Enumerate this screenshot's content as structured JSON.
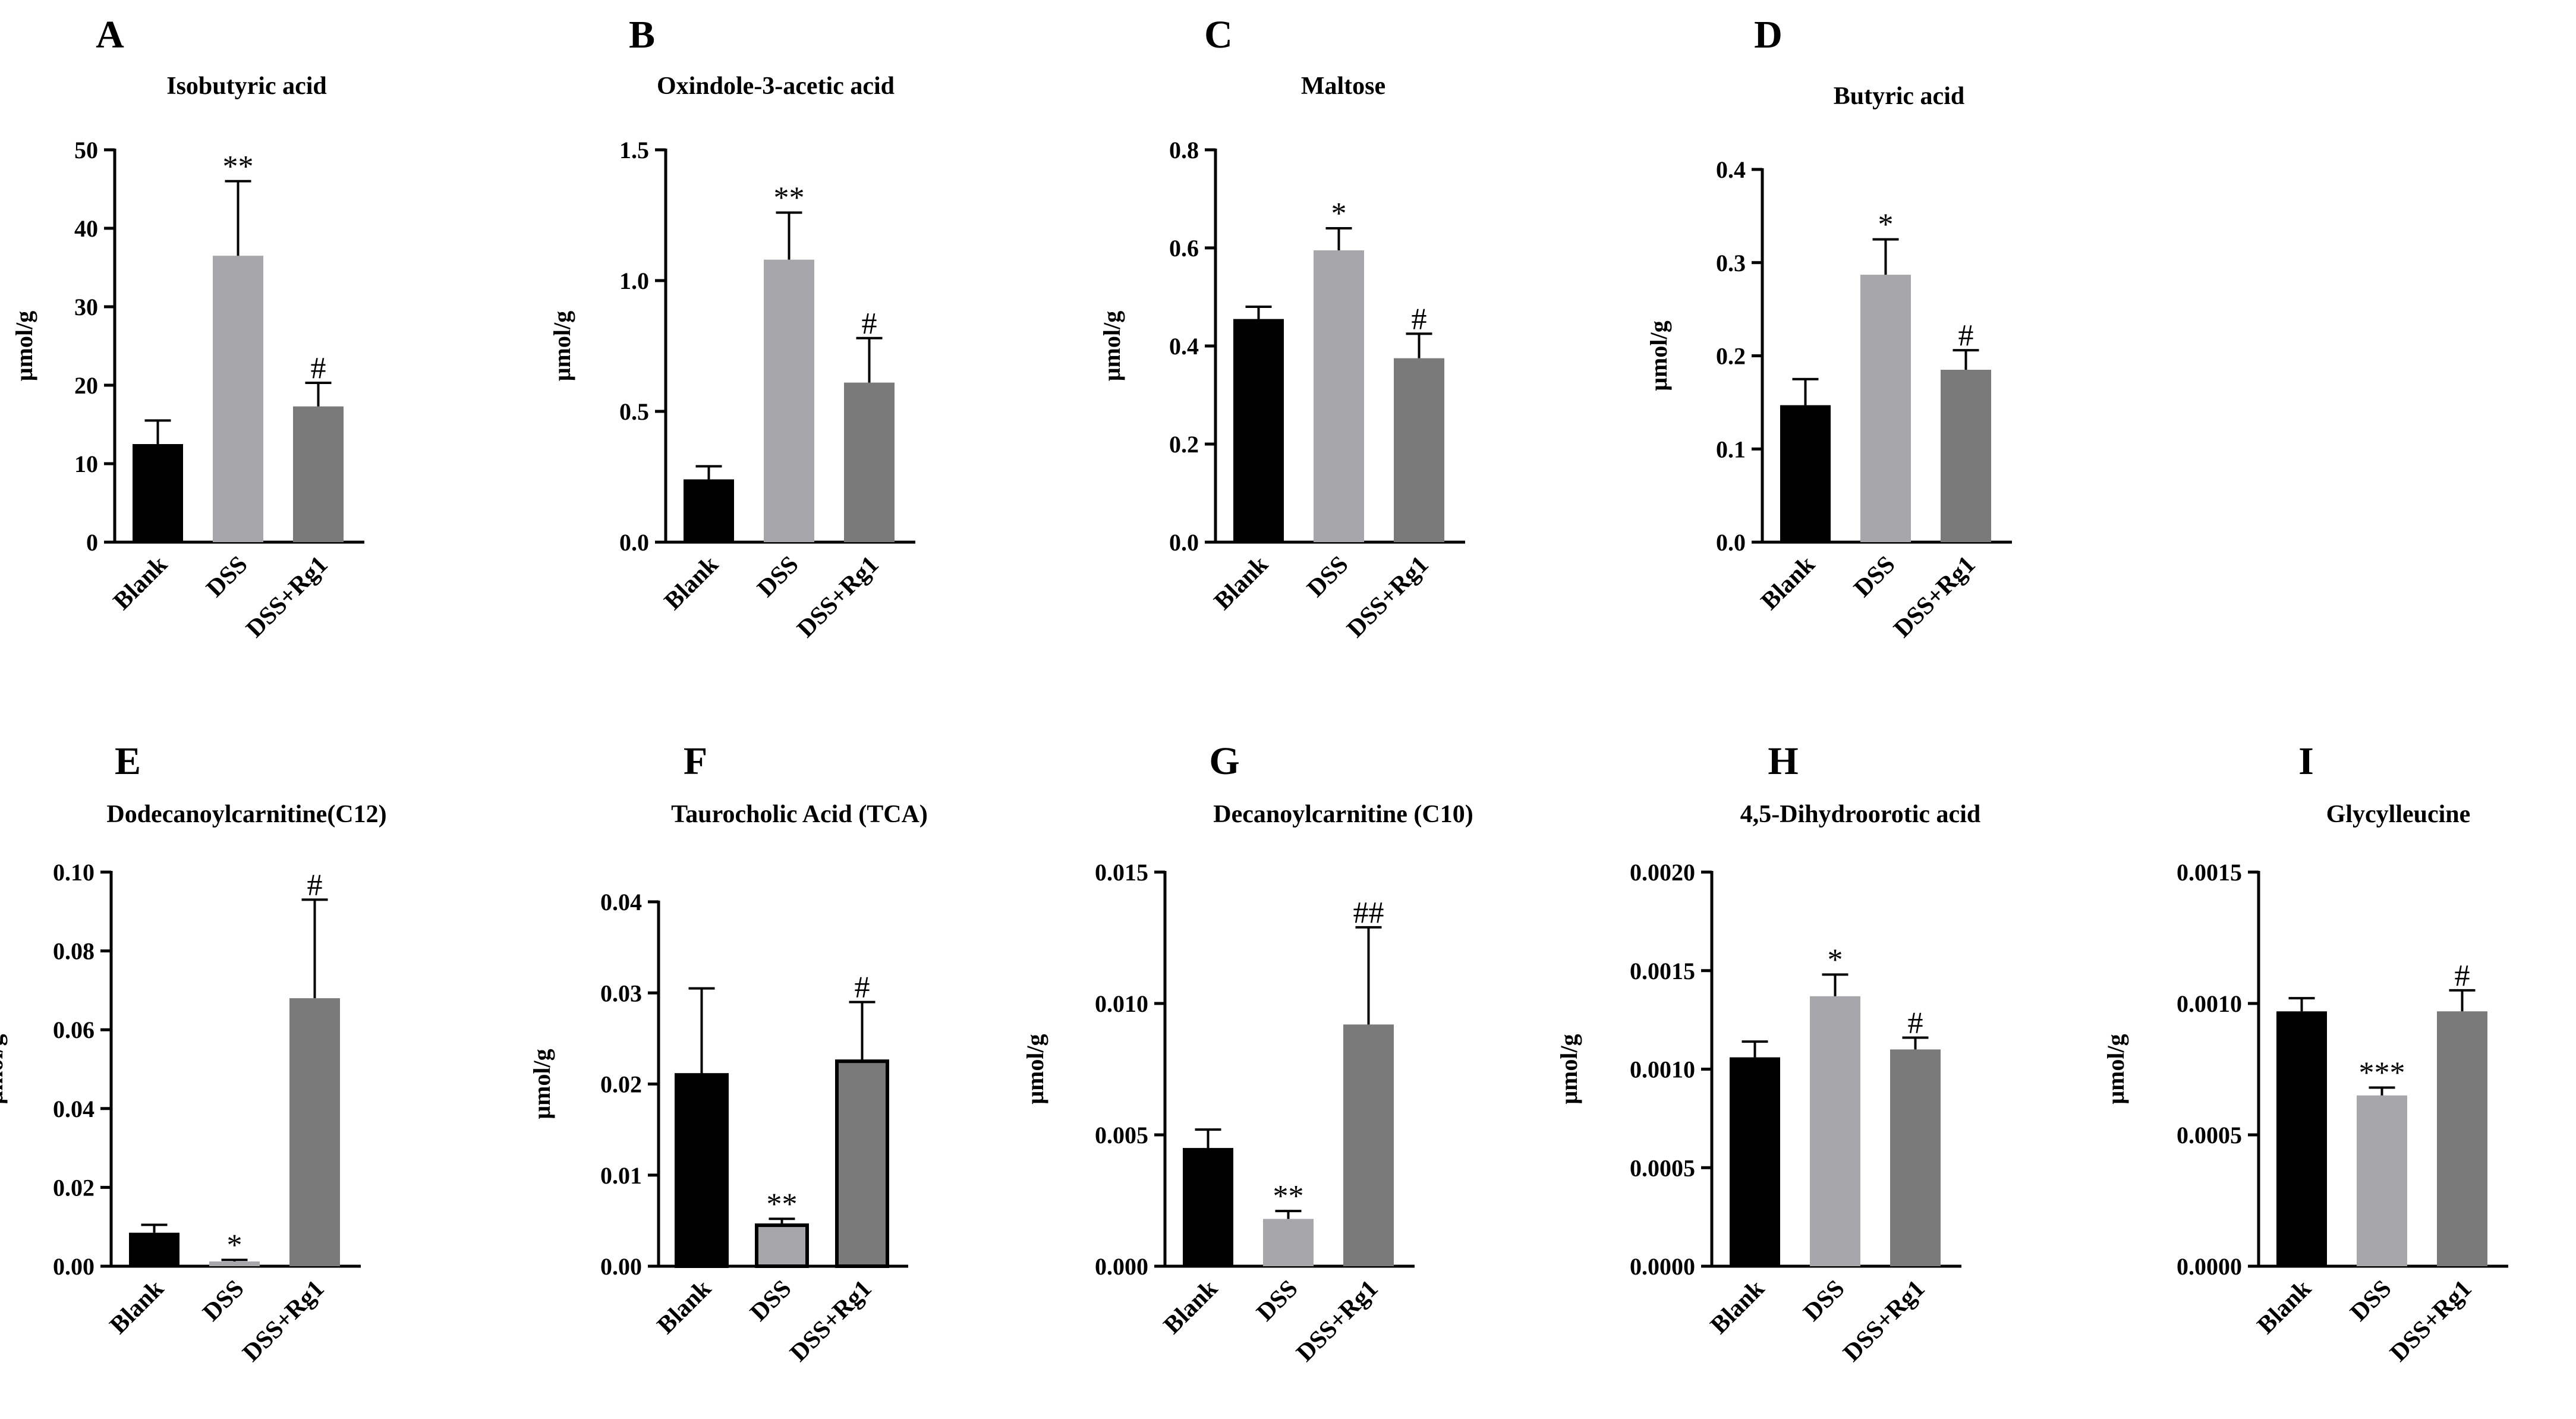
{
  "figure": {
    "categories": [
      "Blank",
      "DSS",
      "DSS+Rg1"
    ],
    "ylabel": "μmol/g",
    "colors": {
      "Blank": "#000000",
      "DSS": "#a6a6ab",
      "DSS+Rg1": "#7a7a7a",
      "axis": "#000000"
    }
  },
  "chart_data": [
    {
      "type": "bar",
      "panel": "A",
      "title": "Isobutyric acid",
      "categories": [
        "Blank",
        "DSS",
        "DSS+Rg1"
      ],
      "values": [
        12.5,
        36.5,
        17.3
      ],
      "errors": [
        3.0,
        9.5,
        3.0
      ],
      "annotations": [
        "",
        "**",
        "#"
      ],
      "ylabel": "μmol/g",
      "ylim": [
        0,
        50
      ],
      "ticks": [
        0,
        10,
        20,
        30,
        40,
        50
      ],
      "tick_labels": [
        "0",
        "10",
        "20",
        "30",
        "40",
        "50"
      ]
    },
    {
      "type": "bar",
      "panel": "B",
      "title": "Oxindole-3-acetic acid",
      "categories": [
        "Blank",
        "DSS",
        "DSS+Rg1"
      ],
      "values": [
        0.24,
        1.08,
        0.61
      ],
      "errors": [
        0.05,
        0.18,
        0.17
      ],
      "annotations": [
        "",
        "**",
        "#"
      ],
      "ylabel": "μmol/g",
      "ylim": [
        0,
        1.5
      ],
      "ticks": [
        0,
        0.5,
        1.0,
        1.5
      ],
      "tick_labels": [
        "0.0",
        "0.5",
        "1.0",
        "1.5"
      ]
    },
    {
      "type": "bar",
      "panel": "C",
      "title": "Maltose",
      "categories": [
        "Blank",
        "DSS",
        "DSS+Rg1"
      ],
      "values": [
        0.455,
        0.595,
        0.375
      ],
      "errors": [
        0.025,
        0.045,
        0.05
      ],
      "annotations": [
        "",
        "*",
        "#"
      ],
      "ylabel": "μmol/g",
      "ylim": [
        0,
        0.8
      ],
      "ticks": [
        0,
        0.2,
        0.4,
        0.6,
        0.8
      ],
      "tick_labels": [
        "0.0",
        "0.2",
        "0.4",
        "0.6",
        "0.8"
      ]
    },
    {
      "type": "bar",
      "panel": "D",
      "title": "Butyric acid",
      "categories": [
        "Blank",
        "DSS",
        "DSS+Rg1"
      ],
      "values": [
        0.147,
        0.287,
        0.185
      ],
      "errors": [
        0.028,
        0.038,
        0.021
      ],
      "annotations": [
        "",
        "*",
        "#"
      ],
      "ylabel": "μmol/g",
      "ylim": [
        0,
        0.4
      ],
      "ticks": [
        0,
        0.1,
        0.2,
        0.3,
        0.4
      ],
      "tick_labels": [
        "0.0",
        "0.1",
        "0.2",
        "0.3",
        "0.4"
      ]
    },
    {
      "type": "bar",
      "panel": "E",
      "title": "Dodecanoylcarnitine(C12)",
      "categories": [
        "Blank",
        "DSS",
        "DSS+Rg1"
      ],
      "values": [
        0.0085,
        0.0012,
        0.068
      ],
      "errors": [
        0.002,
        0.0004,
        0.025
      ],
      "annotations": [
        "",
        "*",
        "#"
      ],
      "ylabel": "μmol/g",
      "ylim": [
        0,
        0.1
      ],
      "ticks": [
        0,
        0.02,
        0.04,
        0.06,
        0.08,
        0.1
      ],
      "tick_labels": [
        "0.00",
        "0.02",
        "0.04",
        "0.06",
        "0.08",
        "0.10"
      ]
    },
    {
      "type": "bar",
      "panel": "F",
      "title": "Taurocholic Acid (TCA)",
      "categories": [
        "Blank",
        "DSS",
        "DSS+Rg1"
      ],
      "values": [
        0.021,
        0.0045,
        0.0225
      ],
      "errors": [
        0.0095,
        0.0007,
        0.0065
      ],
      "annotations": [
        "",
        "**",
        "#"
      ],
      "ylabel": "μmol/g",
      "ylim": [
        0,
        0.04
      ],
      "ticks": [
        0,
        0.01,
        0.02,
        0.03,
        0.04
      ],
      "tick_labels": [
        "0.00",
        "0.01",
        "0.02",
        "0.03",
        "0.04"
      ]
    },
    {
      "type": "bar",
      "panel": "G",
      "title": "Decanoylcarnitine (C10)",
      "categories": [
        "Blank",
        "DSS",
        "DSS+Rg1"
      ],
      "values": [
        0.0045,
        0.0018,
        0.0092
      ],
      "errors": [
        0.0007,
        0.0003,
        0.0037
      ],
      "annotations": [
        "",
        "**",
        "##"
      ],
      "ylabel": "μmol/g",
      "ylim": [
        0,
        0.015
      ],
      "ticks": [
        0,
        0.005,
        0.01,
        0.015
      ],
      "tick_labels": [
        "0.000",
        "0.005",
        "0.010",
        "0.015"
      ]
    },
    {
      "type": "bar",
      "panel": "H",
      "title": "4,5-Dihydroorotic acid",
      "categories": [
        "Blank",
        "DSS",
        "DSS+Rg1"
      ],
      "values": [
        0.00106,
        0.00137,
        0.0011
      ],
      "errors": [
        8e-05,
        0.00011,
        6e-05
      ],
      "annotations": [
        "",
        "*",
        "#"
      ],
      "ylabel": "μmol/g",
      "ylim": [
        0,
        0.002
      ],
      "ticks": [
        0,
        0.0005,
        0.001,
        0.0015,
        0.002
      ],
      "tick_labels": [
        "0.0000",
        "0.0005",
        "0.0010",
        "0.0015",
        "0.0020"
      ]
    },
    {
      "type": "bar",
      "panel": "I",
      "title": "Glycylleucine",
      "categories": [
        "Blank",
        "DSS",
        "DSS+Rg1"
      ],
      "values": [
        0.00097,
        0.00065,
        0.00097
      ],
      "errors": [
        5e-05,
        3e-05,
        8e-05
      ],
      "annotations": [
        "",
        "***",
        "#"
      ],
      "ylabel": "μmol/g",
      "ylim": [
        0,
        0.0015
      ],
      "ticks": [
        0,
        0.0005,
        0.001,
        0.0015
      ],
      "tick_labels": [
        "0.0000",
        "0.0005",
        "0.0010",
        "0.0015"
      ]
    }
  ]
}
